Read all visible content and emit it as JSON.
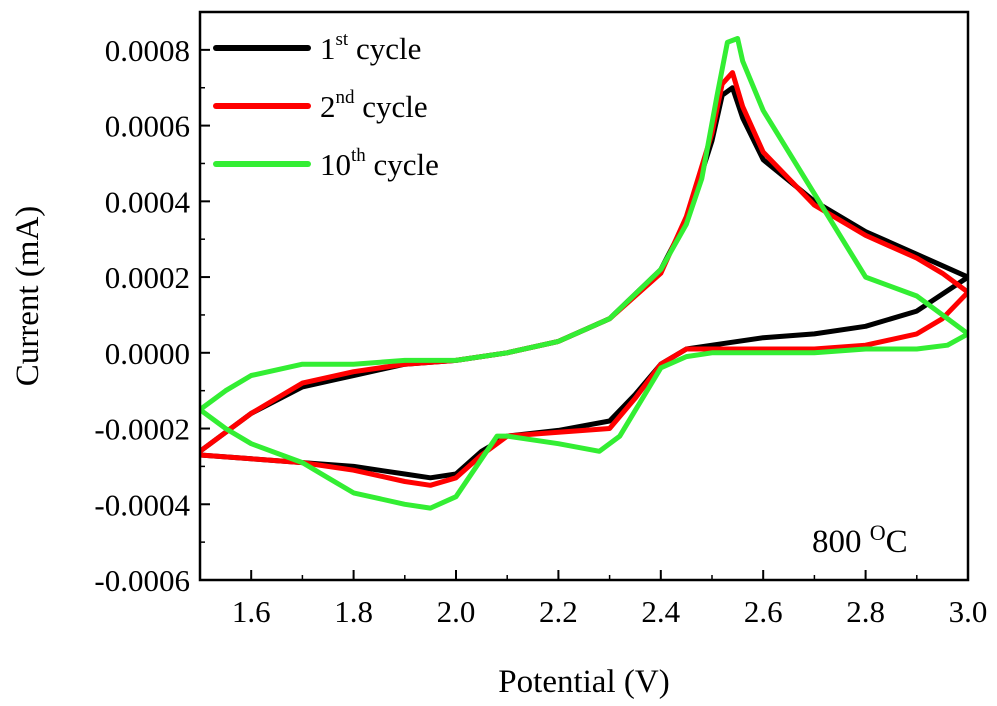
{
  "chart_data": {
    "type": "line",
    "xlabel": "Potential (V)",
    "ylabel": "Current (mA)",
    "xlim": [
      1.5,
      3.0
    ],
    "ylim": [
      -0.0006,
      0.0009
    ],
    "x_ticks": [
      1.6,
      1.8,
      2.0,
      2.2,
      2.4,
      2.6,
      2.8,
      3.0
    ],
    "x_tick_labels": [
      "1.6",
      "1.8",
      "2.0",
      "2.2",
      "2.4",
      "2.6",
      "2.8",
      "3.0"
    ],
    "y_ticks": [
      -0.0006,
      -0.0004,
      -0.0002,
      0.0,
      0.0002,
      0.0004,
      0.0006,
      0.0008
    ],
    "y_tick_labels": [
      "-0.0006",
      "-0.0004",
      "-0.0002",
      "0.0000",
      "0.0002",
      "0.0004",
      "0.0006",
      "0.0008"
    ],
    "grid": false,
    "legend_position": "top-left",
    "annotation": {
      "text": "800 ",
      "sup": "O",
      "tail": "C"
    },
    "series": [
      {
        "name": "1st cycle",
        "base": "1",
        "sup": "st",
        "tail": " cycle",
        "color": "#000000",
        "points": [
          [
            1.5,
            -0.00027
          ],
          [
            1.6,
            -0.00028
          ],
          [
            1.7,
            -0.00029
          ],
          [
            1.8,
            -0.0003
          ],
          [
            1.9,
            -0.00032
          ],
          [
            1.95,
            -0.00033
          ],
          [
            2.0,
            -0.00032
          ],
          [
            2.05,
            -0.00026
          ],
          [
            2.1,
            -0.00022
          ],
          [
            2.2,
            -0.000205
          ],
          [
            2.3,
            -0.00018
          ],
          [
            2.35,
            -0.00011
          ],
          [
            2.4,
            -3e-05
          ],
          [
            2.45,
            1e-05
          ],
          [
            2.5,
            2e-05
          ],
          [
            2.6,
            4e-05
          ],
          [
            2.7,
            5e-05
          ],
          [
            2.8,
            7e-05
          ],
          [
            2.9,
            0.00011
          ],
          [
            3.0,
            0.0002
          ],
          [
            2.95,
            0.00023
          ],
          [
            2.9,
            0.00026
          ],
          [
            2.8,
            0.00032
          ],
          [
            2.7,
            0.0004
          ],
          [
            2.6,
            0.00051
          ],
          [
            2.56,
            0.00062
          ],
          [
            2.54,
            0.0007
          ],
          [
            2.52,
            0.00068
          ],
          [
            2.5,
            0.00056
          ],
          [
            2.45,
            0.00035
          ],
          [
            2.4,
            0.00022
          ],
          [
            2.3,
            9e-05
          ],
          [
            2.2,
            3e-05
          ],
          [
            2.1,
            0.0
          ],
          [
            2.0,
            -2e-05
          ],
          [
            1.9,
            -3e-05
          ],
          [
            1.8,
            -6e-05
          ],
          [
            1.7,
            -9e-05
          ],
          [
            1.6,
            -0.00016
          ],
          [
            1.5,
            -0.00026
          ]
        ]
      },
      {
        "name": "2nd cycle",
        "base": "2",
        "sup": "nd",
        "tail": " cycle",
        "color": "#ff0000",
        "points": [
          [
            1.5,
            -0.00027
          ],
          [
            1.6,
            -0.00028
          ],
          [
            1.7,
            -0.00029
          ],
          [
            1.8,
            -0.00031
          ],
          [
            1.9,
            -0.00034
          ],
          [
            1.95,
            -0.00035
          ],
          [
            2.0,
            -0.00033
          ],
          [
            2.05,
            -0.00027
          ],
          [
            2.1,
            -0.00022
          ],
          [
            2.2,
            -0.00021
          ],
          [
            2.3,
            -0.0002
          ],
          [
            2.35,
            -0.00012
          ],
          [
            2.4,
            -3e-05
          ],
          [
            2.45,
            1e-05
          ],
          [
            2.5,
            1e-05
          ],
          [
            2.6,
            1e-05
          ],
          [
            2.7,
            1e-05
          ],
          [
            2.8,
            2e-05
          ],
          [
            2.9,
            5e-05
          ],
          [
            2.95,
            9e-05
          ],
          [
            3.0,
            0.00016
          ],
          [
            2.95,
            0.00021
          ],
          [
            2.9,
            0.00025
          ],
          [
            2.8,
            0.00031
          ],
          [
            2.7,
            0.00039
          ],
          [
            2.6,
            0.00053
          ],
          [
            2.56,
            0.00065
          ],
          [
            2.54,
            0.00074
          ],
          [
            2.52,
            0.00071
          ],
          [
            2.5,
            0.00058
          ],
          [
            2.45,
            0.00036
          ],
          [
            2.4,
            0.00021
          ],
          [
            2.3,
            9e-05
          ],
          [
            2.2,
            3e-05
          ],
          [
            2.1,
            0.0
          ],
          [
            2.0,
            -2e-05
          ],
          [
            1.9,
            -3e-05
          ],
          [
            1.8,
            -5e-05
          ],
          [
            1.7,
            -8e-05
          ],
          [
            1.6,
            -0.00016
          ],
          [
            1.5,
            -0.00026
          ]
        ]
      },
      {
        "name": "10th cycle",
        "base": "10",
        "sup": "th",
        "tail": " cycle",
        "color": "#33ee33",
        "points": [
          [
            1.5,
            -0.00015
          ],
          [
            1.55,
            -0.0002
          ],
          [
            1.6,
            -0.00024
          ],
          [
            1.7,
            -0.00029
          ],
          [
            1.75,
            -0.00033
          ],
          [
            1.8,
            -0.00037
          ],
          [
            1.9,
            -0.0004
          ],
          [
            1.95,
            -0.00041
          ],
          [
            2.0,
            -0.00038
          ],
          [
            2.05,
            -0.00028
          ],
          [
            2.08,
            -0.00022
          ],
          [
            2.1,
            -0.00022
          ],
          [
            2.2,
            -0.00024
          ],
          [
            2.28,
            -0.00026
          ],
          [
            2.32,
            -0.00022
          ],
          [
            2.36,
            -0.00013
          ],
          [
            2.4,
            -4e-05
          ],
          [
            2.45,
            -1e-05
          ],
          [
            2.5,
            0.0
          ],
          [
            2.6,
            0.0
          ],
          [
            2.7,
            0.0
          ],
          [
            2.8,
            1e-05
          ],
          [
            2.9,
            1e-05
          ],
          [
            2.96,
            2e-05
          ],
          [
            3.0,
            5e-05
          ],
          [
            2.95,
            0.0001
          ],
          [
            2.9,
            0.00015
          ],
          [
            2.8,
            0.0002
          ],
          [
            2.7,
            0.00042
          ],
          [
            2.6,
            0.00064
          ],
          [
            2.56,
            0.00077
          ],
          [
            2.55,
            0.00083
          ],
          [
            2.53,
            0.00082
          ],
          [
            2.51,
            0.00068
          ],
          [
            2.48,
            0.00046
          ],
          [
            2.45,
            0.00034
          ],
          [
            2.4,
            0.00022
          ],
          [
            2.3,
            9e-05
          ],
          [
            2.2,
            3e-05
          ],
          [
            2.1,
            0.0
          ],
          [
            2.0,
            -2e-05
          ],
          [
            1.9,
            -2e-05
          ],
          [
            1.8,
            -3e-05
          ],
          [
            1.7,
            -3e-05
          ],
          [
            1.6,
            -6e-05
          ],
          [
            1.55,
            -0.0001
          ],
          [
            1.5,
            -0.00015
          ]
        ]
      }
    ]
  }
}
